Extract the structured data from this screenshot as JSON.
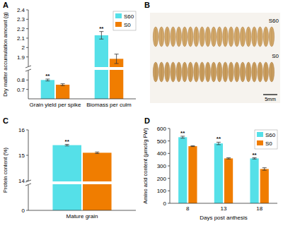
{
  "chart_data": [
    {
      "type": "bar",
      "title": "A",
      "ylabel": "Dry matter accumulation amount (g)",
      "categories": [
        "Grain yield per spike",
        "Biomass per culm"
      ],
      "series": [
        {
          "name": "S60",
          "color": "#55e0e8",
          "values": [
            0.8,
            2.13
          ],
          "errors": [
            0.01,
            0.04
          ],
          "annotations": [
            "**",
            "**"
          ]
        },
        {
          "name": "S0",
          "color": "#f07d00",
          "values": [
            0.75,
            1.88
          ],
          "errors": [
            0.01,
            0.05
          ]
        }
      ],
      "ylim": [
        0.6,
        2.4
      ],
      "ybreak": [
        0.9,
        1.8
      ],
      "yticks": [
        0.7,
        0.8,
        1.9,
        2.0,
        2.1,
        2.2,
        2.3,
        2.4
      ],
      "legend": "upper right"
    },
    {
      "type": "bar",
      "title": "C",
      "ylabel": "Protein content (%)",
      "categories": [
        "Mature grain"
      ],
      "series": [
        {
          "color": "#55e0e8",
          "values": [
            15.4
          ],
          "errors": [
            0.03
          ],
          "annotations": [
            "**"
          ]
        },
        {
          "color": "#f07d00",
          "values": [
            15.1
          ],
          "errors": [
            0.03
          ]
        }
      ],
      "ylim": [
        0,
        16
      ],
      "ybreak": [
        1,
        14
      ],
      "yticks": [
        0,
        14,
        15,
        16
      ]
    },
    {
      "type": "bar",
      "title": "D",
      "ylabel": "Amino acid content (μmol/g FW)",
      "xlabel": "Days post anthesis",
      "categories": [
        "8",
        "13",
        "18"
      ],
      "series": [
        {
          "name": "S60",
          "color": "#55e0e8",
          "values": [
            530,
            480,
            360
          ],
          "errors": [
            8,
            10,
            5
          ],
          "annotations": [
            "**",
            "**",
            "**"
          ]
        },
        {
          "name": "S0",
          "color": "#f07d00",
          "values": [
            458,
            360,
            275
          ],
          "errors": [
            3,
            5,
            10
          ]
        }
      ],
      "ylim": [
        0,
        600
      ],
      "yticks": [
        0,
        100,
        200,
        300,
        400,
        500,
        600
      ],
      "legend": "upper right"
    }
  ],
  "image": {
    "title": "B",
    "labels": [
      "S60",
      "S0"
    ],
    "scale_label": "5mm"
  }
}
